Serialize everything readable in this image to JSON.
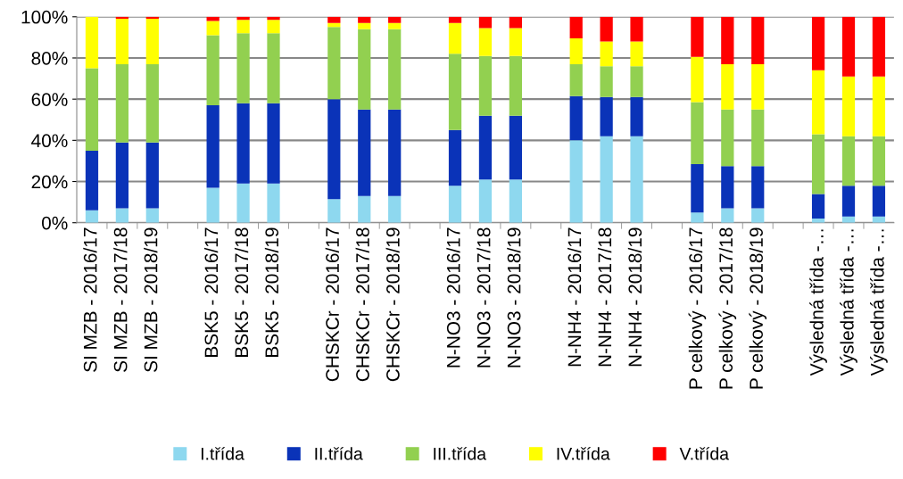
{
  "chart_data": {
    "type": "bar",
    "stacked": true,
    "categories": [
      "SI MZB - 2016/17",
      "SI MZB - 2017/18",
      "SI MZB - 2018/19",
      null,
      "BSK5 - 2016/17",
      "BSK5 - 2017/18",
      "BSK5 - 2018/19",
      null,
      "CHSKCr - 2016/17",
      "CHSKCr - 2017/18",
      "CHSKCr - 2018/19",
      null,
      "N-NO3 - 2016/17",
      "N-NO3 - 2017/18",
      "N-NO3 - 2018/19",
      null,
      "N-NH4 - 2016/17",
      "N-NH4 - 2017/18",
      "N-NH4 - 2018/19",
      null,
      "P celkový - 2016/17",
      "P celkový - 2017/18",
      "P celkový - 2018/19",
      null,
      "Výsledná třída -…",
      "Výsledná třída -…",
      "Výsledná třída -…"
    ],
    "series": [
      {
        "name": "I.třída",
        "color": "#8ed8ef",
        "values": [
          6,
          7,
          7,
          null,
          17,
          19,
          19,
          null,
          11.5,
          13,
          13,
          null,
          18,
          21,
          21,
          null,
          40,
          42,
          42,
          null,
          5,
          7,
          7,
          null,
          2,
          3,
          3
        ]
      },
      {
        "name": "II.třída",
        "color": "#0a33b8",
        "values": [
          29,
          32,
          32,
          null,
          40,
          39,
          39,
          null,
          48.5,
          42,
          42,
          null,
          27,
          31,
          31,
          null,
          21.5,
          19,
          19,
          null,
          23.5,
          20.5,
          20.5,
          null,
          12,
          15,
          15
        ]
      },
      {
        "name": "III.třída",
        "color": "#92d050",
        "values": [
          40,
          38,
          38,
          null,
          34,
          34,
          34,
          null,
          35,
          39,
          39,
          null,
          37,
          29,
          29,
          null,
          15.5,
          15,
          15,
          null,
          30,
          27.5,
          27.5,
          null,
          29,
          24,
          24
        ]
      },
      {
        "name": "IV.třída",
        "color": "#ffff00",
        "values": [
          25,
          22,
          22,
          null,
          7,
          6.5,
          6.5,
          null,
          2,
          3,
          3,
          null,
          15,
          13.5,
          13.5,
          null,
          12.5,
          12,
          12,
          null,
          22,
          22,
          22,
          null,
          31,
          29,
          29
        ]
      },
      {
        "name": "V.třída",
        "color": "#ff0000",
        "values": [
          0,
          1,
          1,
          null,
          2,
          1.5,
          1.5,
          null,
          3,
          3,
          3,
          null,
          3,
          5.5,
          5.5,
          null,
          10.5,
          12,
          12,
          null,
          19.5,
          23,
          23,
          null,
          26,
          29,
          29
        ]
      }
    ],
    "ylim": [
      0,
      100
    ],
    "yticks": [
      {
        "value": 0,
        "label": "0%"
      },
      {
        "value": 20,
        "label": "20%"
      },
      {
        "value": 40,
        "label": "40%"
      },
      {
        "value": 60,
        "label": "60%"
      },
      {
        "value": 80,
        "label": "80%"
      },
      {
        "value": 100,
        "label": "100%"
      }
    ],
    "grid": "y",
    "legend": "bottom"
  }
}
